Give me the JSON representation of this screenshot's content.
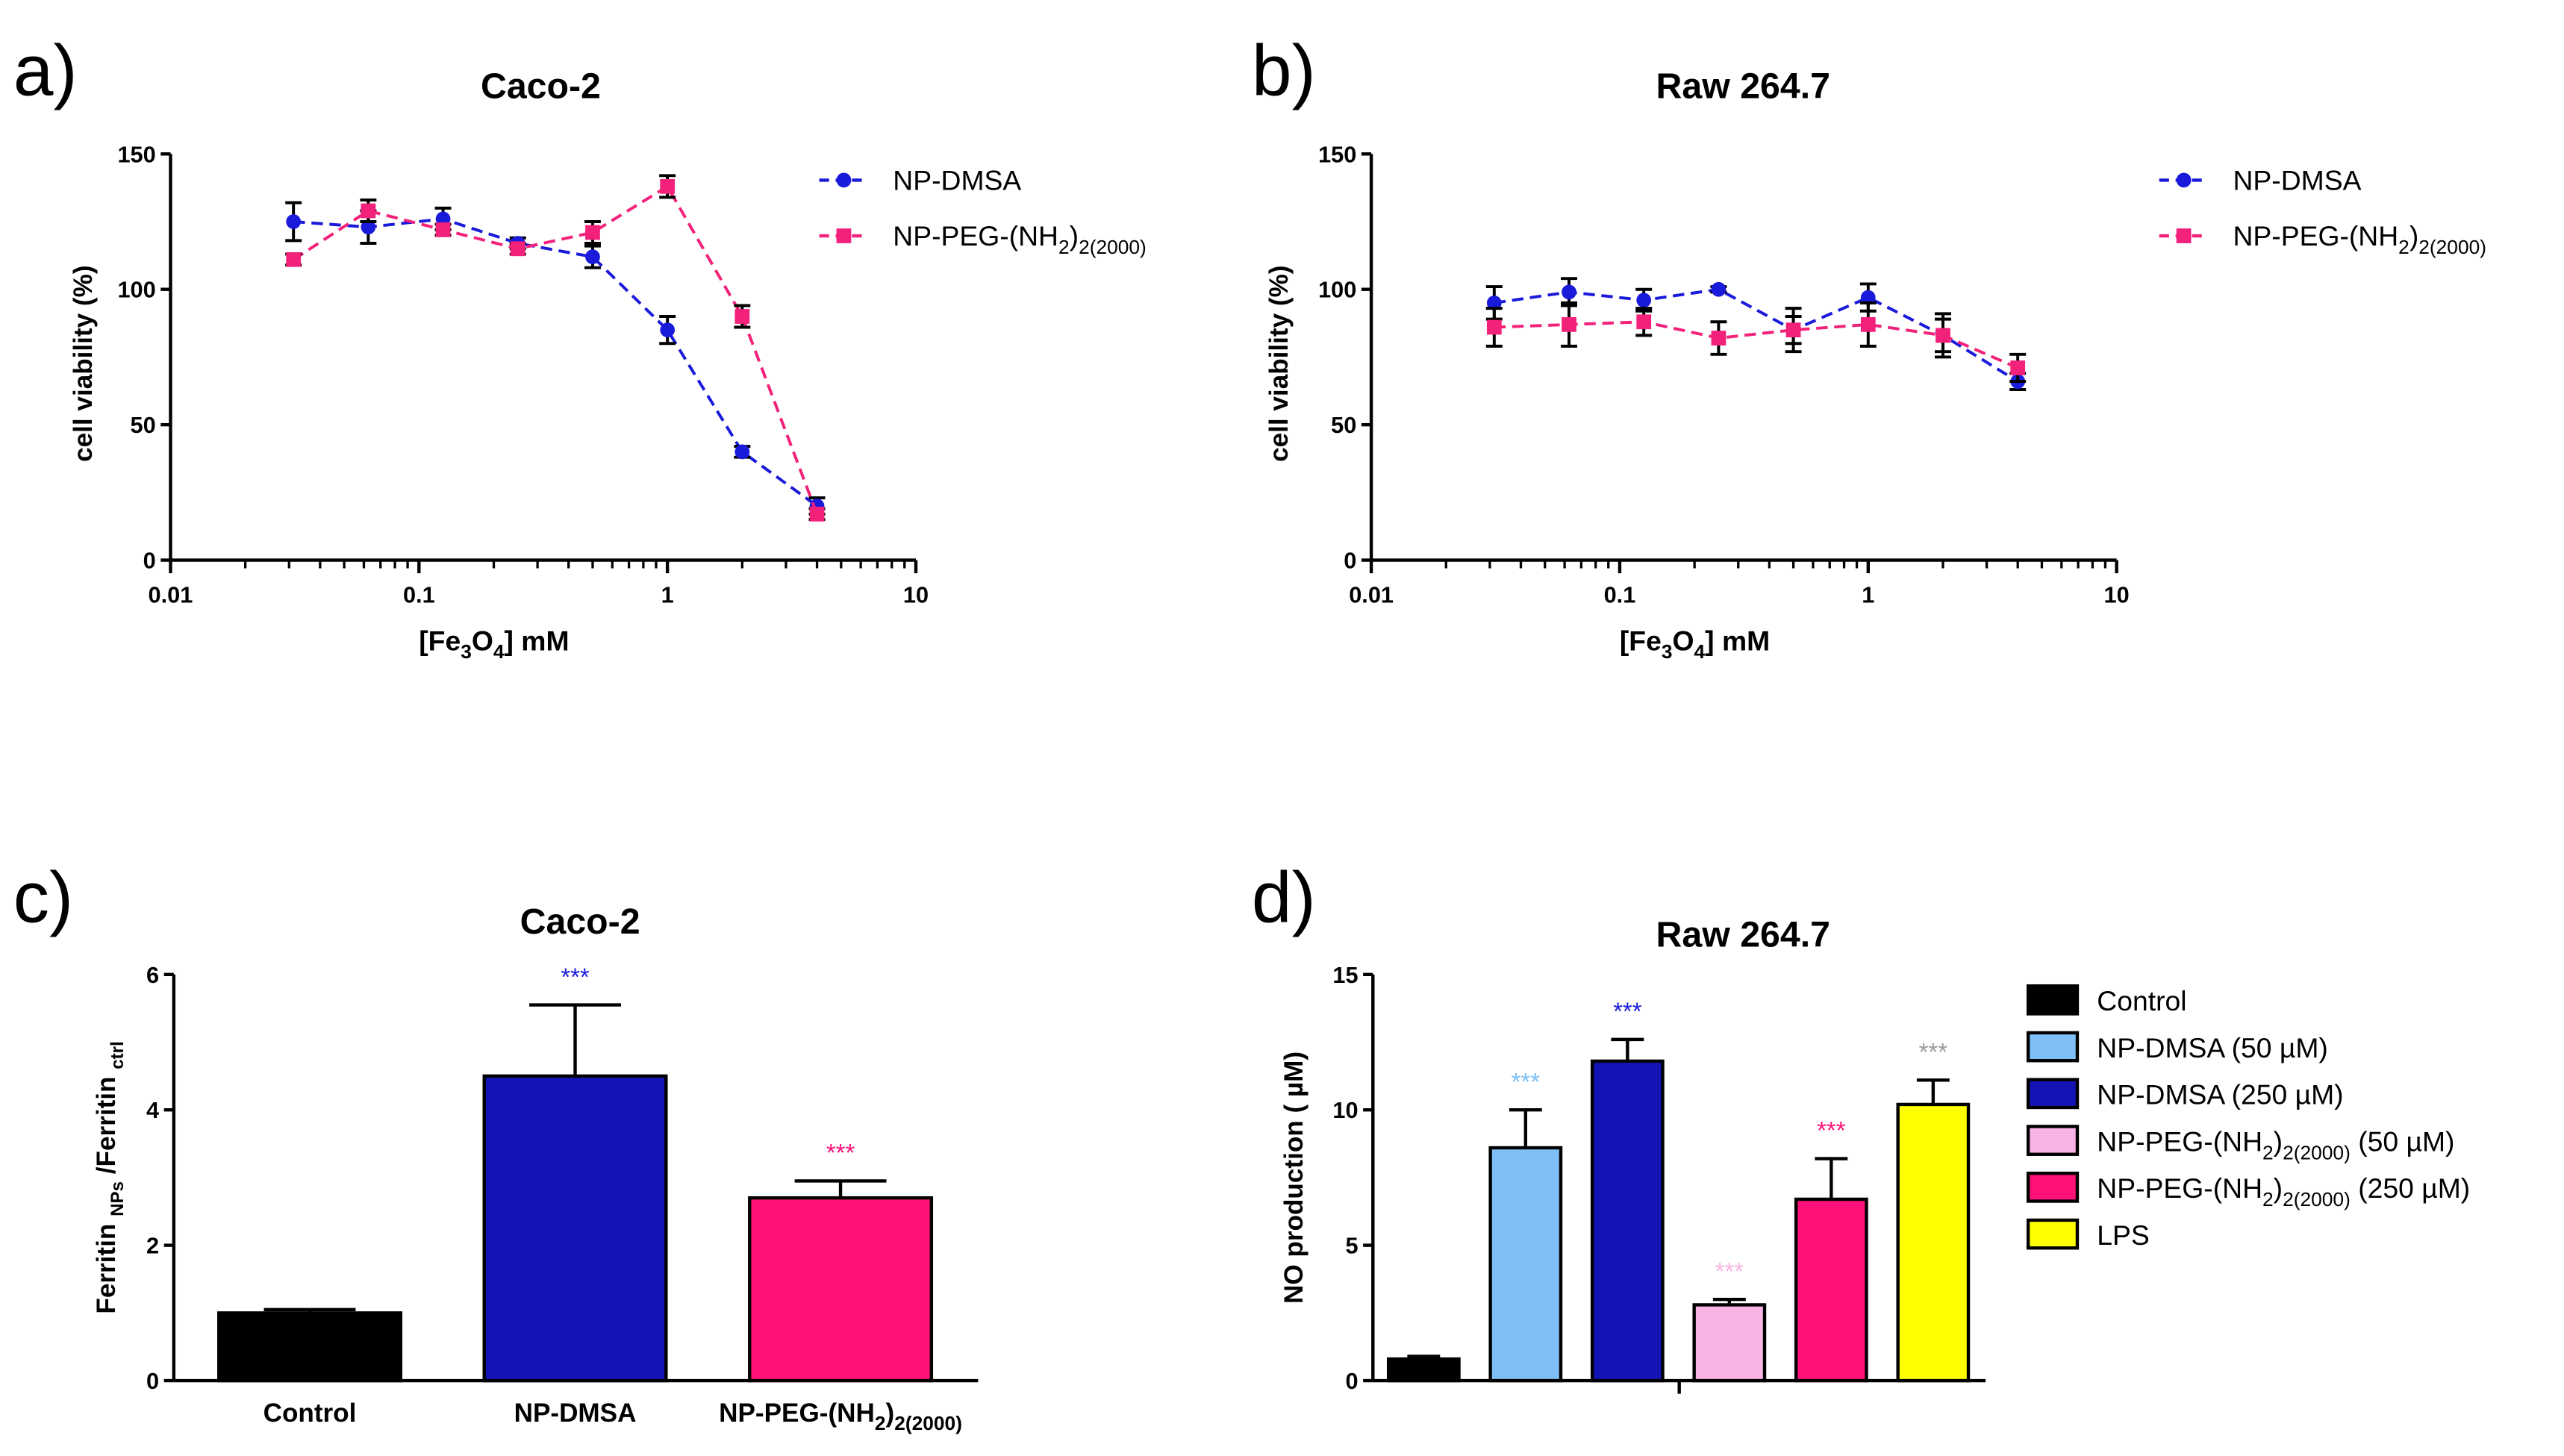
{
  "chart_data": [
    {
      "panel": "a)",
      "type": "line",
      "title": "Caco-2",
      "xlabel": "[Fe3O4] mM",
      "ylabel": "cell viability (%)",
      "xscale": "log",
      "xlim": [
        0.01,
        10
      ],
      "ylim": [
        0,
        150
      ],
      "xticks": [
        0.01,
        0.1,
        1,
        10
      ],
      "xtick_labels": [
        "0.01",
        "0.1",
        "1",
        "10"
      ],
      "yticks": [
        0,
        50,
        100,
        150
      ],
      "ytick_labels": [
        "0",
        "50",
        "100",
        "150"
      ],
      "legend_position": "top-right",
      "series": [
        {
          "name": "NP-DMSA",
          "name_main": "NP-DMSA",
          "color": "#1a1adb",
          "marker": "circle",
          "x": [
            0.03125,
            0.0625,
            0.125,
            0.25,
            0.5,
            1,
            2,
            4
          ],
          "y": [
            125,
            123,
            126,
            117,
            112,
            85,
            40,
            20
          ],
          "err": [
            7,
            6,
            4,
            2,
            4,
            5,
            2,
            3
          ]
        },
        {
          "name": "NP-PEG-(NH2)2(2000)",
          "name_main": "NP-PEG-(NH",
          "name_sub1": "2",
          "name_mid": ")",
          "name_sub2": "2(2000)",
          "color": "#f2217a",
          "marker": "square",
          "x": [
            0.03125,
            0.0625,
            0.125,
            0.25,
            0.5,
            1,
            2,
            4
          ],
          "y": [
            111,
            129,
            122,
            115,
            121,
            138,
            90,
            17
          ],
          "err": [
            2,
            4,
            2,
            2,
            4,
            4,
            4,
            2
          ]
        }
      ]
    },
    {
      "panel": "b)",
      "type": "line",
      "title": "Raw 264.7",
      "xlabel": "[Fe3O4] mM",
      "ylabel": "cell viability (%)",
      "xscale": "log",
      "xlim": [
        0.01,
        10
      ],
      "ylim": [
        0,
        150
      ],
      "xticks": [
        0.01,
        0.1,
        1,
        10
      ],
      "xtick_labels": [
        "0.01",
        "0.1",
        "1",
        "10"
      ],
      "yticks": [
        0,
        50,
        100,
        150
      ],
      "ytick_labels": [
        "0",
        "50",
        "100",
        "150"
      ],
      "legend_position": "top-right",
      "series": [
        {
          "name": "NP-DMSA",
          "name_main": "NP-DMSA",
          "color": "#1a1adb",
          "marker": "circle",
          "x": [
            0.03125,
            0.0625,
            0.125,
            0.25,
            0.5,
            1,
            2,
            4
          ],
          "y": [
            95,
            99,
            96,
            100,
            85,
            97,
            83,
            66
          ],
          "err": [
            6,
            5,
            4,
            1,
            5,
            5,
            6,
            3
          ]
        },
        {
          "name": "NP-PEG-(NH2)2(2000)",
          "name_main": "NP-PEG-(NH",
          "name_sub1": "2",
          "name_mid": ")",
          "name_sub2": "2(2000)",
          "color": "#f2217a",
          "marker": "square",
          "x": [
            0.03125,
            0.0625,
            0.125,
            0.25,
            0.5,
            1,
            2,
            4
          ],
          "y": [
            86,
            87,
            88,
            82,
            85,
            87,
            83,
            71
          ],
          "err": [
            7,
            8,
            5,
            6,
            8,
            8,
            8,
            5
          ]
        }
      ]
    },
    {
      "panel": "c)",
      "type": "bar",
      "title": "Caco-2",
      "ylabel": "Ferritin NPs /Ferritin ctrl",
      "ylim": [
        0,
        6
      ],
      "yticks": [
        0,
        2,
        4,
        6
      ],
      "ytick_labels": [
        "0",
        "2",
        "4",
        "6"
      ],
      "categories": [
        "Control",
        "NP-DMSA",
        "NP-PEG-(NH2)2(2000)"
      ],
      "values": [
        1.0,
        4.5,
        2.7
      ],
      "err": [
        0.05,
        1.05,
        0.25
      ],
      "colors": [
        "#000000",
        "#1414b4",
        "#ff1178"
      ],
      "significance": [
        "",
        "***",
        "***"
      ],
      "sig_colors": [
        "",
        "#1a1adb",
        "#ff1178"
      ]
    },
    {
      "panel": "d)",
      "type": "bar",
      "title": "Raw 264.7",
      "ylabel": "NO production ( µM)",
      "ylim": [
        0,
        15
      ],
      "yticks": [
        0,
        5,
        10,
        15
      ],
      "ytick_labels": [
        "0",
        "5",
        "10",
        "15"
      ],
      "categories": [
        "Control",
        "NP-DMSA (50 µM)",
        "NP-DMSA (250 µM)",
        "NP-PEG-(NH2)2(2000) (50 µM)",
        "NP-PEG-(NH2)2(2000) (250 µM)",
        "LPS"
      ],
      "values": [
        0.8,
        8.6,
        11.8,
        2.8,
        6.7,
        10.2
      ],
      "err": [
        0.1,
        1.4,
        0.8,
        0.2,
        1.5,
        0.9
      ],
      "colors": [
        "#000000",
        "#7ec0f5",
        "#1414b4",
        "#f9b4e6",
        "#ff1178",
        "#ffff00"
      ],
      "significance": [
        "",
        "***",
        "***",
        "***",
        "***",
        "***"
      ],
      "sig_colors": [
        "",
        "#7ec0f5",
        "#1a1adb",
        "#f9b4e6",
        "#ff1178",
        "#9a9a9a"
      ],
      "legend_position": "right",
      "legend": [
        {
          "main": "Control"
        },
        {
          "main": "NP-DMSA (50 ",
          "unit": "µM)"
        },
        {
          "main": "NP-DMSA (250 ",
          "unit": "µM)"
        },
        {
          "main": "NP-PEG-(NH",
          "sub1": "2",
          "mid": ")",
          "sub2": "2(2000)",
          "tail": " (50 ",
          "unit": "µM)"
        },
        {
          "main": "NP-PEG-(NH",
          "sub1": "2",
          "mid": ")",
          "sub2": "2(2000)",
          "tail": " (250 ",
          "unit": "µM)"
        },
        {
          "main": "LPS"
        }
      ]
    }
  ]
}
